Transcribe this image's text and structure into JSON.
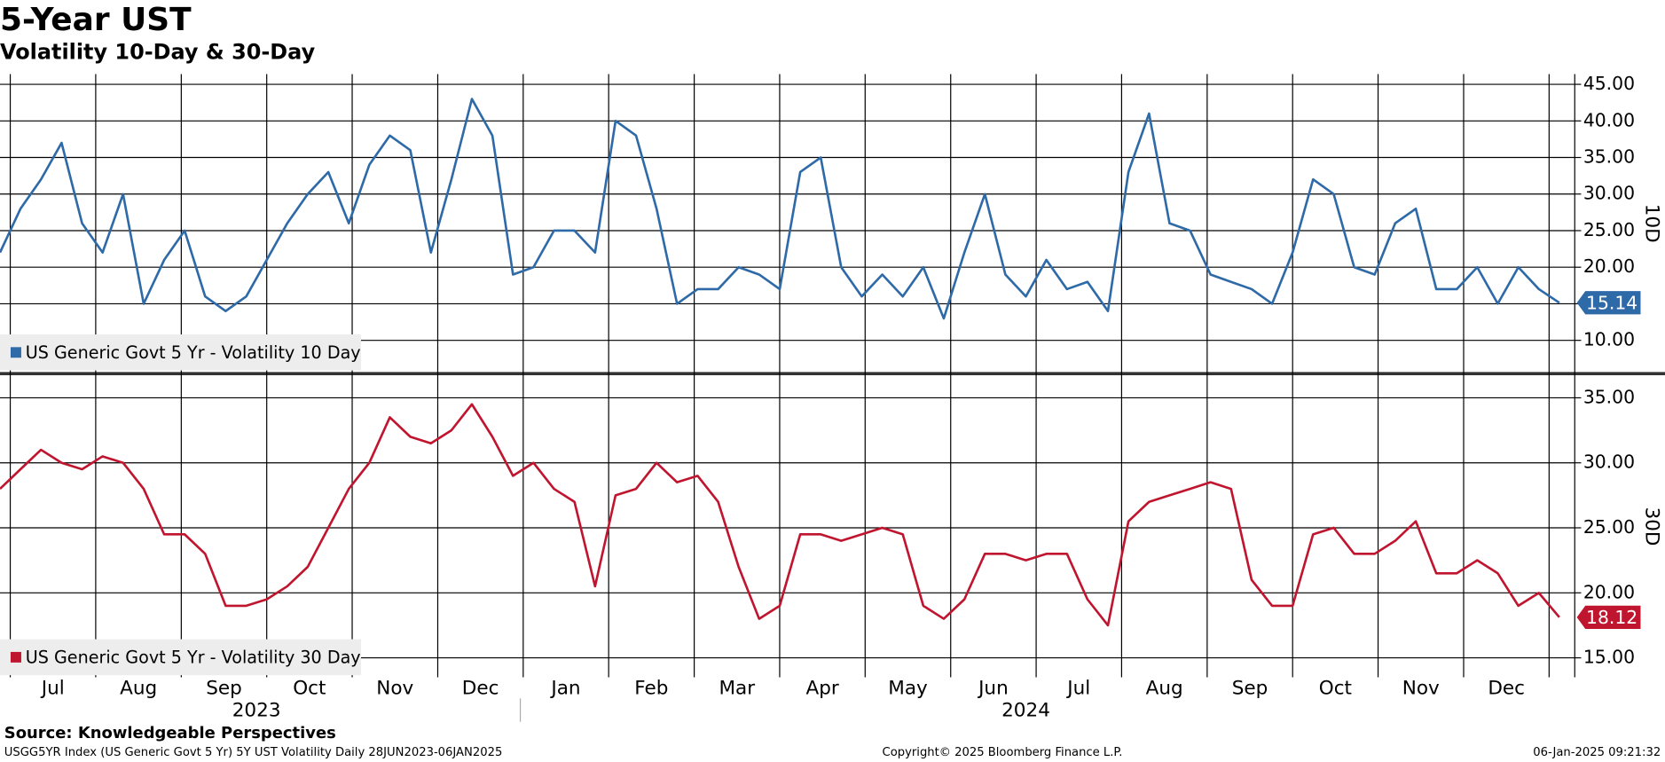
{
  "header": {
    "title": "5-Year UST",
    "subtitle": "Volatility 10-Day & 30-Day"
  },
  "footer": {
    "source": "Source: Knowledgeable Perspectives",
    "ticker": "USGG5YR Index (US Generic Govt 5 Yr) 5Y UST Volatility  Daily 28JUN2023-06JAN2025",
    "copyright": "Copyright© 2025 Bloomberg Finance L.P.",
    "timestamp": "06-Jan-2025 09:21:32"
  },
  "chart_data": [
    {
      "type": "line",
      "y_axis_label": "10D",
      "ylim": [
        5.6,
        46.4
      ],
      "yticks": [
        10,
        15,
        20,
        25,
        30,
        35,
        40,
        45
      ],
      "xlim": [
        2023.49,
        2025.025
      ],
      "grid": true,
      "x": [
        2023.49,
        2023.51,
        2023.53,
        2023.55,
        2023.57,
        2023.59,
        2023.61,
        2023.63,
        2023.65,
        2023.67,
        2023.69,
        2023.71,
        2023.73,
        2023.75,
        2023.77,
        2023.79,
        2023.81,
        2023.83,
        2023.85,
        2023.87,
        2023.89,
        2023.91,
        2023.93,
        2023.95,
        2023.97,
        2023.99,
        2024.01,
        2024.03,
        2024.05,
        2024.07,
        2024.09,
        2024.11,
        2024.13,
        2024.15,
        2024.17,
        2024.19,
        2024.21,
        2024.23,
        2024.25,
        2024.27,
        2024.29,
        2024.31,
        2024.33,
        2024.35,
        2024.37,
        2024.39,
        2024.41,
        2024.43,
        2024.45,
        2024.47,
        2024.49,
        2024.51,
        2024.53,
        2024.55,
        2024.57,
        2024.59,
        2024.61,
        2024.63,
        2024.65,
        2024.67,
        2024.69,
        2024.71,
        2024.73,
        2024.75,
        2024.77,
        2024.79,
        2024.81,
        2024.83,
        2024.85,
        2024.87,
        2024.89,
        2024.91,
        2024.93,
        2024.95,
        2024.97,
        2024.99,
        2025.01
      ],
      "series": [
        {
          "name": "US Generic Govt 5 Yr - Volatility 10 Day",
          "color": "#2f6aa8",
          "values": [
            22,
            28,
            32,
            37,
            26,
            22,
            30,
            15,
            21,
            25,
            16,
            14,
            16,
            21,
            26,
            30,
            33,
            26,
            34,
            38,
            36,
            22,
            32,
            43,
            38,
            19,
            20,
            25,
            25,
            22,
            40,
            38,
            28,
            15,
            17,
            17,
            20,
            19,
            17,
            33,
            35,
            20,
            16,
            19,
            16,
            20,
            13,
            22,
            30,
            19,
            16,
            21,
            17,
            18,
            14,
            33,
            41,
            26,
            25,
            19,
            18,
            17,
            15,
            22,
            32,
            30,
            20,
            19,
            26,
            28,
            17,
            17,
            20,
            15,
            20,
            17,
            15.14
          ]
        }
      ]
    },
    {
      "type": "line",
      "y_axis_label": "30D",
      "ylim": [
        13.5,
        36.7
      ],
      "yticks": [
        15,
        20,
        25,
        30,
        35
      ],
      "xlim": [
        2023.49,
        2025.025
      ],
      "grid": true,
      "xticks": [
        {
          "value": 2023.5,
          "label": "Jul"
        },
        {
          "value": 2023.5833,
          "label": "Aug"
        },
        {
          "value": 2023.6667,
          "label": "Sep"
        },
        {
          "value": 2023.75,
          "label": "Oct"
        },
        {
          "value": 2023.8333,
          "label": "Nov"
        },
        {
          "value": 2023.9167,
          "label": "Dec"
        },
        {
          "value": 2024.0,
          "label": "Jan"
        },
        {
          "value": 2024.0833,
          "label": "Feb"
        },
        {
          "value": 2024.1667,
          "label": "Mar"
        },
        {
          "value": 2024.25,
          "label": "Apr"
        },
        {
          "value": 2024.3333,
          "label": "May"
        },
        {
          "value": 2024.4167,
          "label": "Jun"
        },
        {
          "value": 2024.5,
          "label": "Jul"
        },
        {
          "value": 2024.5833,
          "label": "Aug"
        },
        {
          "value": 2024.6667,
          "label": "Sep"
        },
        {
          "value": 2024.75,
          "label": "Oct"
        },
        {
          "value": 2024.8333,
          "label": "Nov"
        },
        {
          "value": 2024.9167,
          "label": "Dec"
        },
        {
          "value": 2025.0,
          "label": null
        }
      ],
      "year_labels": [
        {
          "value": 2023.74,
          "label": "2023"
        },
        {
          "value": 2024.49,
          "label": "2024"
        }
      ],
      "x": [
        2023.49,
        2023.51,
        2023.53,
        2023.55,
        2023.57,
        2023.59,
        2023.61,
        2023.63,
        2023.65,
        2023.67,
        2023.69,
        2023.71,
        2023.73,
        2023.75,
        2023.77,
        2023.79,
        2023.81,
        2023.83,
        2023.85,
        2023.87,
        2023.89,
        2023.91,
        2023.93,
        2023.95,
        2023.97,
        2023.99,
        2024.01,
        2024.03,
        2024.05,
        2024.07,
        2024.09,
        2024.11,
        2024.13,
        2024.15,
        2024.17,
        2024.19,
        2024.21,
        2024.23,
        2024.25,
        2024.27,
        2024.29,
        2024.31,
        2024.33,
        2024.35,
        2024.37,
        2024.39,
        2024.41,
        2024.43,
        2024.45,
        2024.47,
        2024.49,
        2024.51,
        2024.53,
        2024.55,
        2024.57,
        2024.59,
        2024.61,
        2024.63,
        2024.65,
        2024.67,
        2024.69,
        2024.71,
        2024.73,
        2024.75,
        2024.77,
        2024.79,
        2024.81,
        2024.83,
        2024.85,
        2024.87,
        2024.89,
        2024.91,
        2024.93,
        2024.95,
        2024.97,
        2024.99,
        2025.01
      ],
      "series": [
        {
          "name": "US Generic Govt 5 Yr - Volatility 30 Day",
          "color": "#c0152f",
          "values": [
            28,
            29.5,
            31,
            30,
            29.5,
            30.5,
            30,
            28,
            24.5,
            24.5,
            23,
            19,
            19,
            19.5,
            20.5,
            22,
            25,
            28,
            30,
            33.5,
            32,
            31.5,
            32.5,
            34.5,
            32,
            29,
            30,
            28,
            27,
            20.5,
            27.5,
            28,
            30,
            28.5,
            29,
            27,
            22,
            18,
            19,
            24.5,
            24.5,
            24,
            24.5,
            25,
            24.5,
            19,
            18,
            19.5,
            23,
            23,
            22.5,
            23,
            23,
            19.5,
            17.5,
            25.5,
            27,
            27.5,
            28,
            28.5,
            28,
            21,
            19,
            19,
            24.5,
            25,
            23,
            23,
            24,
            25.5,
            21.5,
            21.5,
            22.5,
            21.5,
            19,
            20,
            18.12
          ]
        }
      ]
    }
  ]
}
